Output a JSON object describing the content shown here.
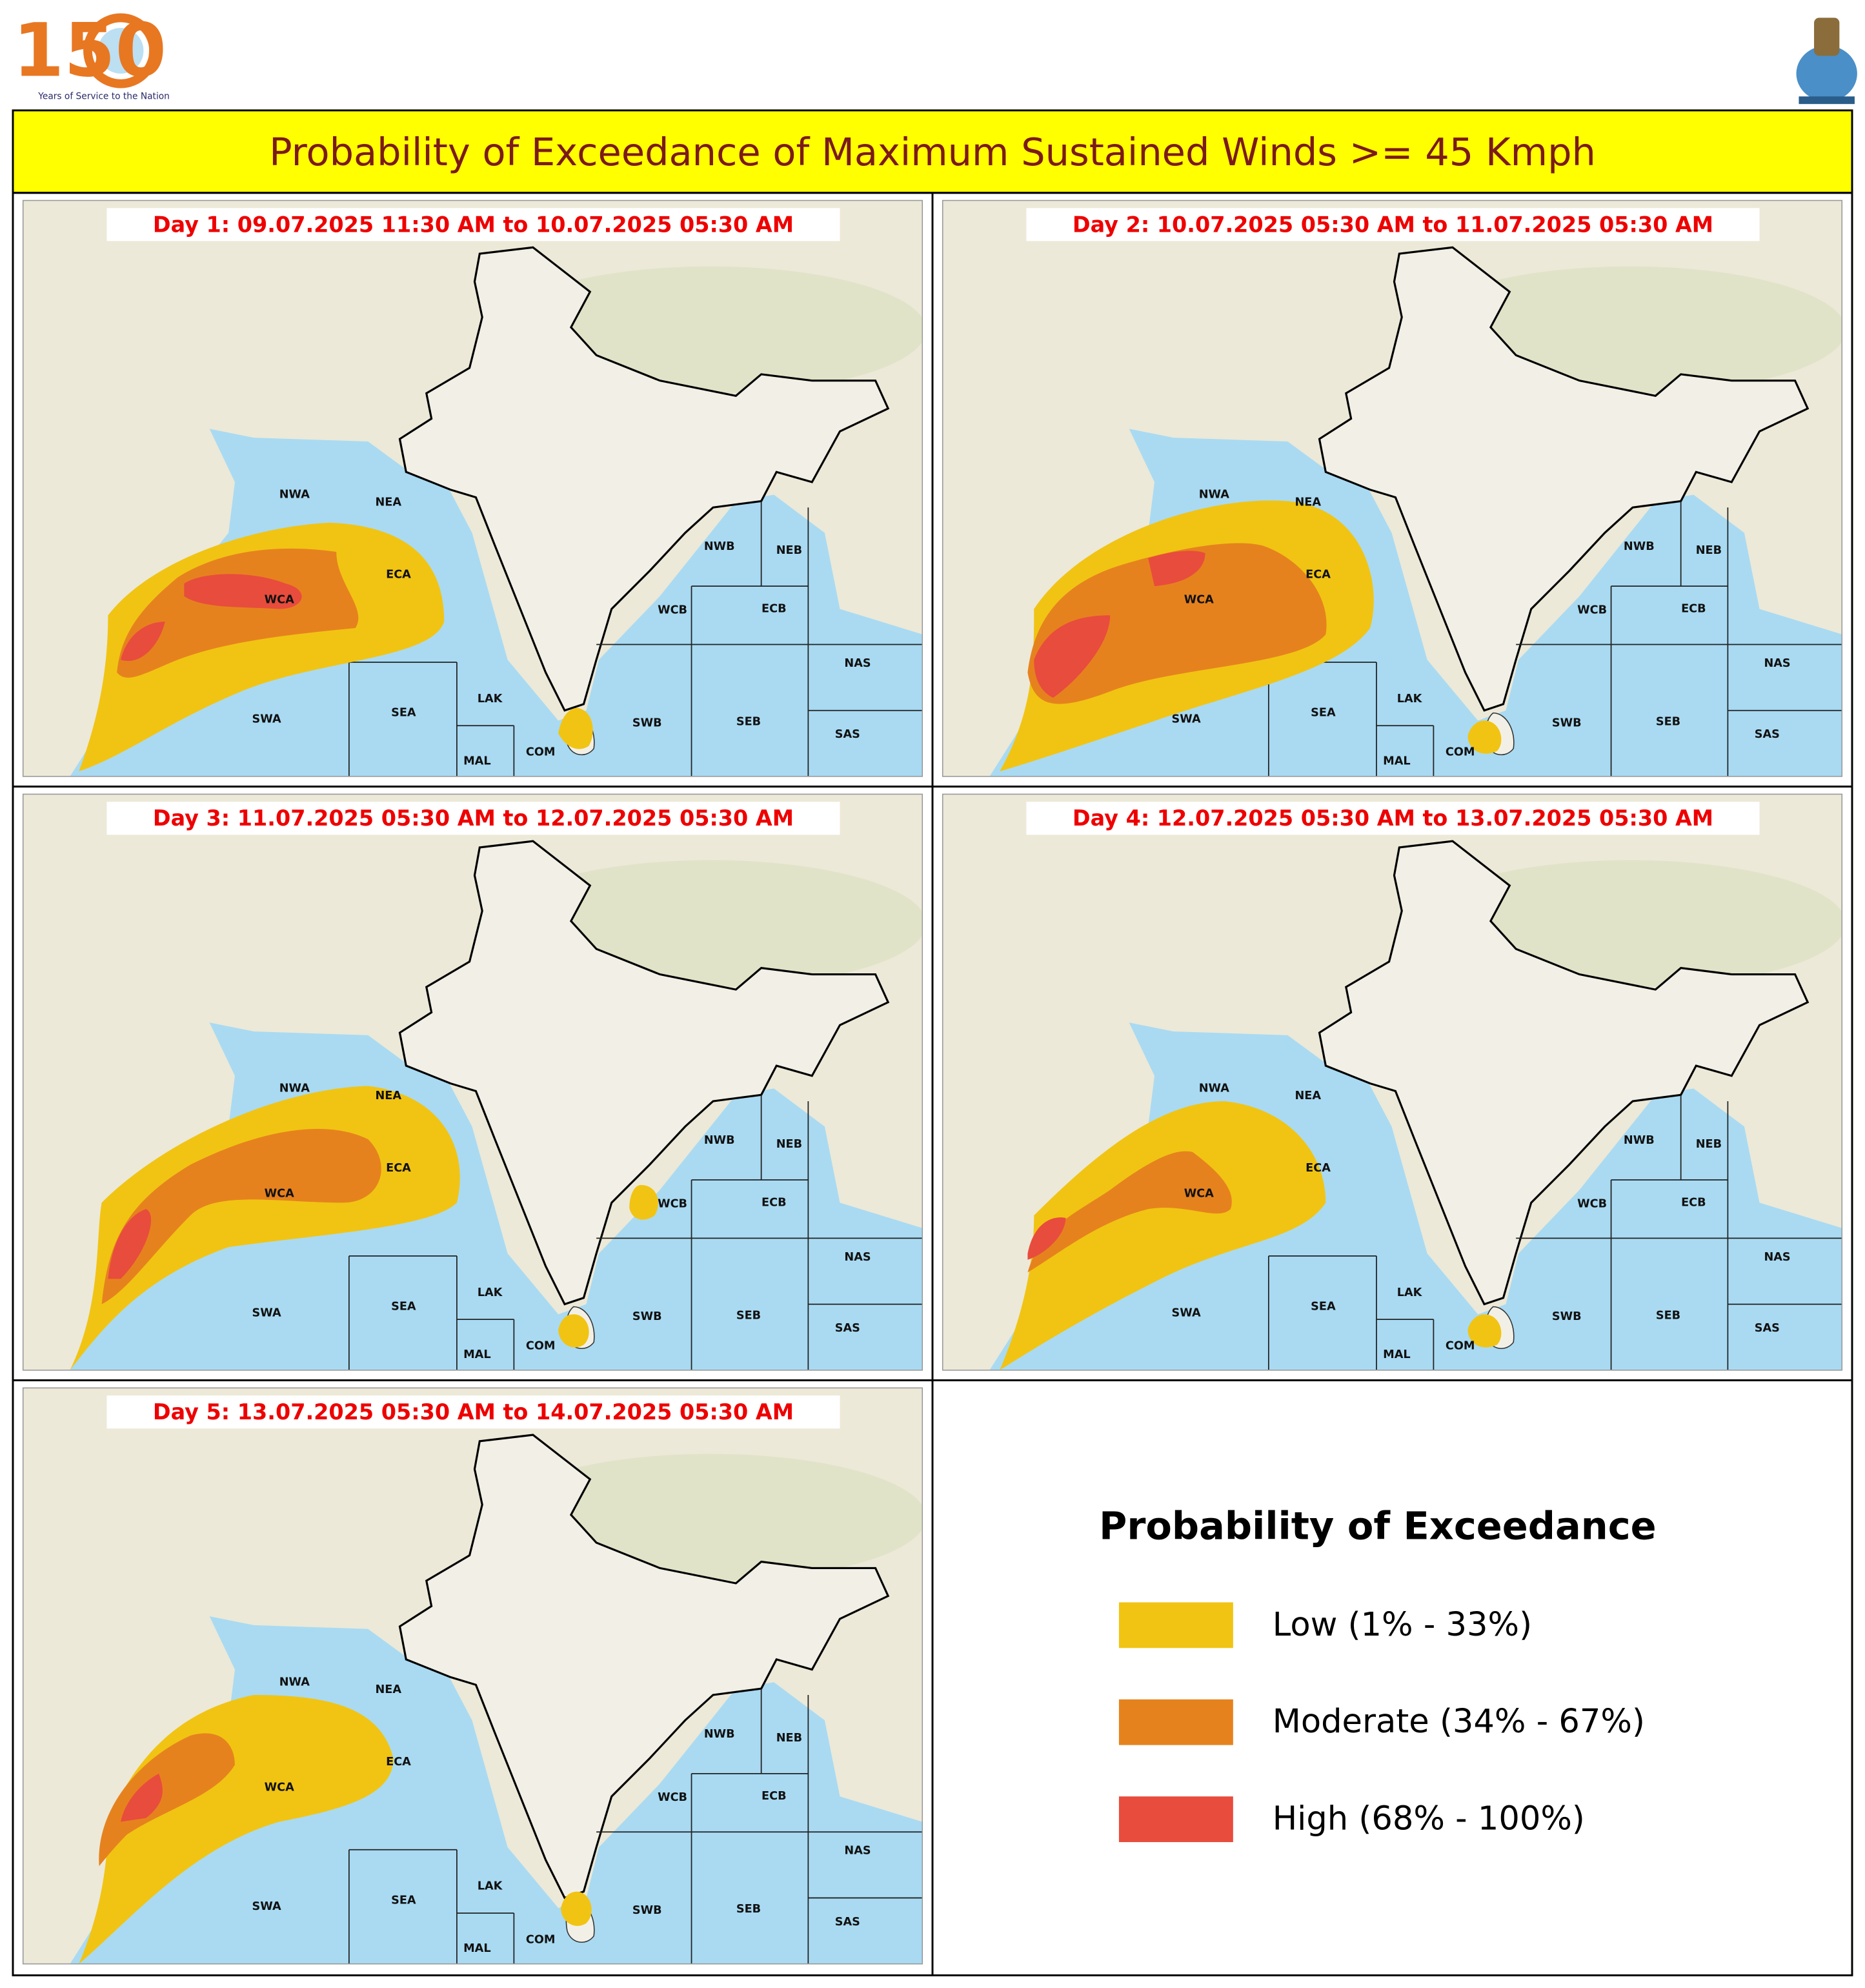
{
  "header": {
    "logo": "150",
    "tagline": "Years of Service to the Nation",
    "title": "Probability of Exceedance of Maximum Sustained Winds >= 45 Kmph"
  },
  "panels": [
    {
      "label": "Day 1: 09.07.2025 11:30 AM to 10.07.2025 05:30 AM"
    },
    {
      "label": "Day 2: 10.07.2025 05:30 AM to 11.07.2025 05:30 AM"
    },
    {
      "label": "Day 3: 11.07.2025 05:30 AM to 12.07.2025 05:30 AM"
    },
    {
      "label": "Day 4: 12.07.2025 05:30 AM to 13.07.2025 05:30 AM"
    },
    {
      "label": "Day 5: 13.07.2025 05:30 AM to 14.07.2025 05:30 AM"
    }
  ],
  "regions": [
    "NWA",
    "NEA",
    "ECA",
    "WCA",
    "SWA",
    "SEA",
    "LAK",
    "MAL",
    "COM",
    "SWB",
    "SEB",
    "WCB",
    "NWB",
    "NEB",
    "ECB",
    "NAS",
    "SAS"
  ],
  "legend": {
    "title": "Probability of Exceedance",
    "items": [
      {
        "label": "Low (1% - 33%)",
        "color": "#f1c413"
      },
      {
        "label": "Moderate (34% - 67%)",
        "color": "#e6821e"
      },
      {
        "label": "High (68% - 100%)",
        "color": "#e84c3d"
      }
    ]
  }
}
